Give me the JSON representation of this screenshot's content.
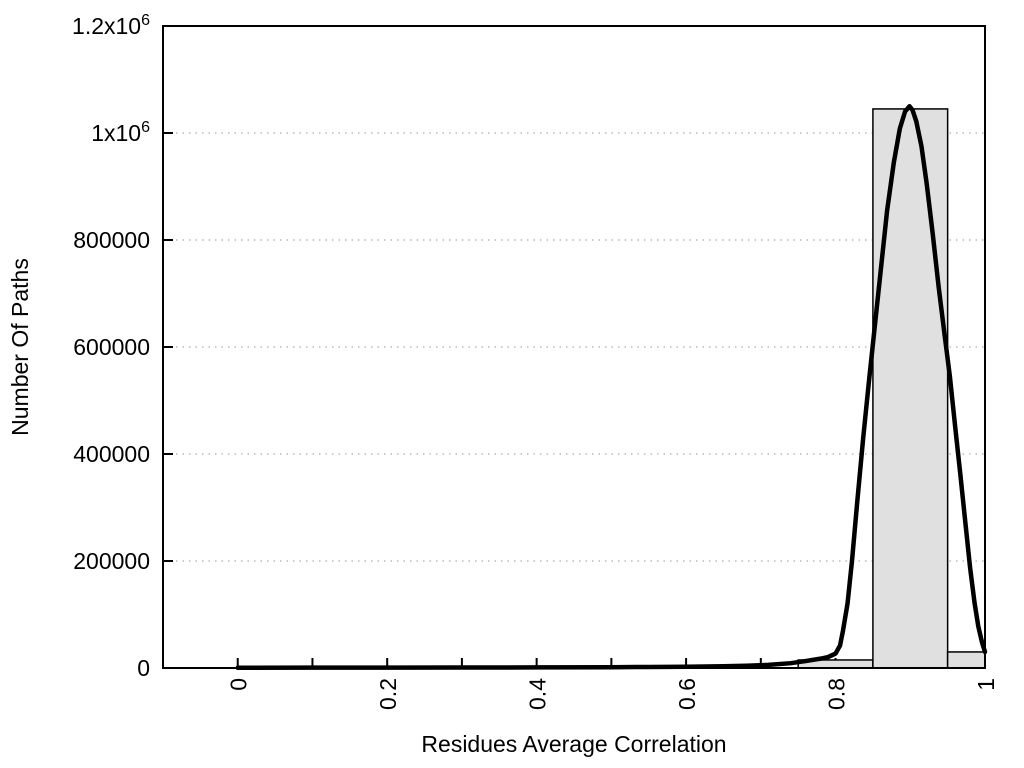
{
  "chart_data": {
    "type": "histogram",
    "title": "",
    "xlabel": "Residues Average Correlation",
    "ylabel": "Number Of Paths",
    "xlim": [
      -0.1,
      1.0
    ],
    "ylim": [
      0,
      1200000
    ],
    "x_ticks": [
      {
        "value": 0,
        "label": "0"
      },
      {
        "value": 0.2,
        "label": "0.2"
      },
      {
        "value": 0.4,
        "label": "0.4"
      },
      {
        "value": 0.6,
        "label": "0.6"
      },
      {
        "value": 0.8,
        "label": "0.8"
      },
      {
        "value": 1,
        "label": "1"
      }
    ],
    "x_minor_tick_step": 0.1,
    "x_tick_labels_rotated": true,
    "y_ticks": [
      {
        "value": 0,
        "label": "0"
      },
      {
        "value": 200000,
        "label": "200000"
      },
      {
        "value": 400000,
        "label": "400000"
      },
      {
        "value": 600000,
        "label": "600000"
      },
      {
        "value": 800000,
        "label": "800000"
      },
      {
        "value": 1000000,
        "label": "1x10^6"
      },
      {
        "value": 1200000,
        "label": "1.2x10^6"
      }
    ],
    "grid": {
      "horizontal_dotted": true,
      "vertical": false,
      "color": "#b9b9b9"
    },
    "legend": null,
    "bars": {
      "fill": "#e0e0e0",
      "stroke": "#000000",
      "bins": [
        {
          "x0": 0.75,
          "x1": 0.85,
          "count": 15000
        },
        {
          "x0": 0.85,
          "x1": 0.95,
          "count": 1045000
        },
        {
          "x0": 0.95,
          "x1": 1.0,
          "count": 30000
        }
      ]
    },
    "curve": {
      "description": "bell-shaped fit curve, peak ~1050000 at x~0.9",
      "color": "#000000",
      "points": [
        [
          0.0,
          500
        ],
        [
          0.1,
          600
        ],
        [
          0.2,
          700
        ],
        [
          0.3,
          900
        ],
        [
          0.4,
          1100
        ],
        [
          0.5,
          1500
        ],
        [
          0.55,
          1900
        ],
        [
          0.6,
          2400
        ],
        [
          0.65,
          3200
        ],
        [
          0.68,
          4200
        ],
        [
          0.71,
          5800
        ],
        [
          0.74,
          9000
        ],
        [
          0.76,
          13000
        ],
        [
          0.78,
          17500
        ],
        [
          0.79,
          20500
        ],
        [
          0.8,
          27000
        ],
        [
          0.806,
          42000
        ],
        [
          0.81,
          70000
        ],
        [
          0.816,
          120000
        ],
        [
          0.822,
          200000
        ],
        [
          0.829,
          310000
        ],
        [
          0.837,
          430000
        ],
        [
          0.845,
          540000
        ],
        [
          0.853,
          645000
        ],
        [
          0.861,
          750000
        ],
        [
          0.869,
          855000
        ],
        [
          0.878,
          945000
        ],
        [
          0.886,
          1008000
        ],
        [
          0.893,
          1040000
        ],
        [
          0.899,
          1050000
        ],
        [
          0.903,
          1043000
        ],
        [
          0.908,
          1022000
        ],
        [
          0.915,
          975000
        ],
        [
          0.922,
          905000
        ],
        [
          0.93,
          812000
        ],
        [
          0.938,
          712000
        ],
        [
          0.946,
          622000
        ],
        [
          0.953,
          545000
        ],
        [
          0.96,
          452000
        ],
        [
          0.967,
          362000
        ],
        [
          0.974,
          268000
        ],
        [
          0.98,
          188000
        ],
        [
          0.986,
          122000
        ],
        [
          0.991,
          78000
        ],
        [
          0.996,
          48000
        ],
        [
          1.0,
          30000
        ]
      ]
    },
    "axis_color": "#000000",
    "background_color": "#ffffff"
  }
}
